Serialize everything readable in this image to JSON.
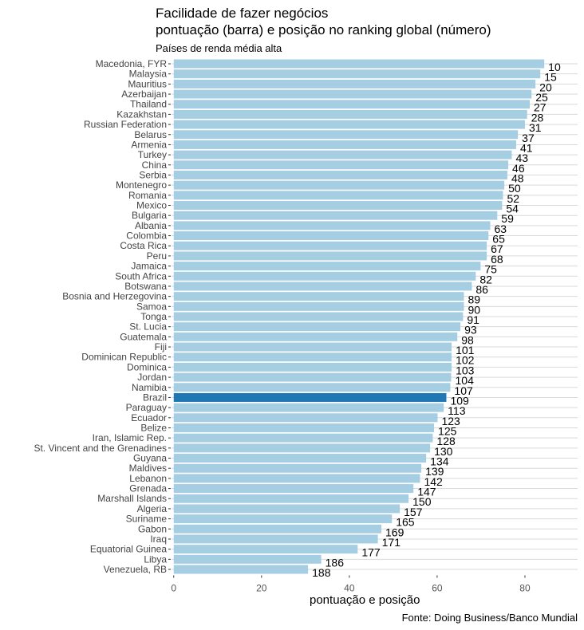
{
  "chart_data": {
    "type": "bar",
    "orientation": "horizontal",
    "title": "Facilidade de fazer negócios",
    "title_line2": "pontuação (barra) e posição no ranking global (número)",
    "subtitle": "Países de renda média alta",
    "xlabel": "pontuação e posição",
    "ylabel": "",
    "caption": "Fonte: Doing Business/Banco Mundial",
    "xlim": [
      -0.5,
      92
    ],
    "xticks": [
      0,
      20,
      40,
      60,
      80
    ],
    "grid": true,
    "colors": {
      "default": "#a6cee3",
      "highlight": "#1f78b4",
      "grid": "#d9d9d9"
    },
    "highlight": "Brazil",
    "categories": [
      "Macedonia, FYR",
      "Malaysia",
      "Mauritius",
      "Azerbaijan",
      "Thailand",
      "Kazakhstan",
      "Russian Federation",
      "Belarus",
      "Armenia",
      "Turkey",
      "China",
      "Serbia",
      "Montenegro",
      "Romania",
      "Mexico",
      "Bulgaria",
      "Albania",
      "Colombia",
      "Costa Rica",
      "Peru",
      "Jamaica",
      "South Africa",
      "Botswana",
      "Bosnia and Herzegovina",
      "Samoa",
      "Tonga",
      "St. Lucia",
      "Guatemala",
      "Fiji",
      "Dominican Republic",
      "Dominica",
      "Jordan",
      "Namibia",
      "Brazil",
      "Paraguay",
      "Ecuador",
      "Belize",
      "Iran, Islamic Rep.",
      "St. Vincent and the Grenadines",
      "Guyana",
      "Maldives",
      "Lebanon",
      "Grenada",
      "Marshall Islands",
      "Algeria",
      "Suriname",
      "Gabon",
      "Iraq",
      "Equatorial Guinea",
      "Libya",
      "Venezuela, RB"
    ],
    "values": [
      84.4,
      83.5,
      82.4,
      81.5,
      81.1,
      80.5,
      80.0,
      78.4,
      78.0,
      77.0,
      76.2,
      76.0,
      75.3,
      75.0,
      74.8,
      73.7,
      72.1,
      71.7,
      71.3,
      71.3,
      69.9,
      68.8,
      67.9,
      66.1,
      66.1,
      65.9,
      65.3,
      64.6,
      63.3,
      63.3,
      63.3,
      63.2,
      63.0,
      62.1,
      61.5,
      60.1,
      59.3,
      59.0,
      58.4,
      57.5,
      56.4,
      56.1,
      54.6,
      53.5,
      51.5,
      49.7,
      47.3,
      46.5,
      41.9,
      33.6,
      30.6
    ],
    "ranks": [
      "10",
      "15",
      "20",
      "25",
      "27",
      "28",
      "31",
      "37",
      "41",
      "43",
      "46",
      "48",
      "50",
      "52",
      "54",
      "59",
      "63",
      "65",
      "67",
      "68",
      "75",
      "82",
      "86",
      "89",
      "90",
      "91",
      "93",
      "98",
      "101",
      "102",
      "103",
      "104",
      "107",
      "109",
      "113",
      "123",
      "125",
      "128",
      "130",
      "134",
      "139",
      "142",
      "147",
      "150",
      "157",
      "165",
      "169",
      "171",
      "177",
      "186",
      "188"
    ]
  }
}
